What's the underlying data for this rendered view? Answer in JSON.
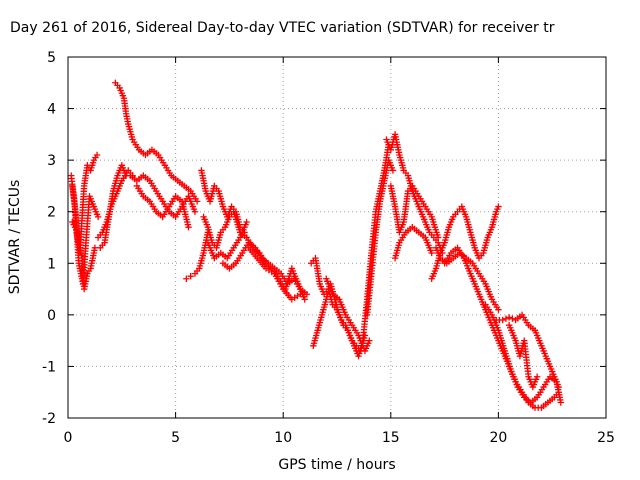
{
  "chart_data": {
    "type": "scatter",
    "title": "Day 261 of 2016, Sidereal Day-to-day VTEC variation (SDTVAR) for receiver tr",
    "xlabel": "GPS time / hours",
    "ylabel": "SDTVAR / TECUs",
    "xlim": [
      0,
      25
    ],
    "ylim": [
      -2,
      5
    ],
    "xticks": [
      "0",
      "5",
      "10",
      "15",
      "20",
      "25"
    ],
    "yticks": [
      "-2",
      "-1",
      "0",
      "1",
      "2",
      "3",
      "4",
      "5"
    ],
    "grid": true,
    "marker": "plus",
    "color": "#ff0000",
    "series": [
      {
        "x": [
          0.15,
          0.3,
          0.4,
          0.55,
          0.75,
          0.9,
          1.05,
          1.2,
          1.35
        ],
        "y": [
          2.7,
          2.2,
          1.6,
          1.2,
          2.5,
          2.9,
          2.8,
          3.0,
          3.1
        ]
      },
      {
        "x": [
          0.2,
          0.35,
          0.5,
          0.7,
          0.85,
          1.0,
          1.2,
          1.4
        ],
        "y": [
          2.5,
          2.0,
          1.0,
          0.6,
          1.5,
          2.3,
          2.1,
          1.9
        ]
      },
      {
        "x": [
          0.2,
          0.45,
          0.65,
          0.75,
          0.9,
          1.05,
          1.25
        ],
        "y": [
          1.8,
          1.6,
          1.1,
          0.5,
          0.8,
          0.9,
          1.3
        ]
      },
      {
        "x": [
          1.4,
          1.6,
          1.8,
          2.0,
          2.2,
          2.5,
          2.8,
          3.0
        ],
        "y": [
          1.5,
          1.6,
          1.8,
          2.1,
          2.3,
          2.6,
          2.8,
          2.7
        ]
      },
      {
        "x": [
          1.5,
          1.7,
          1.9,
          2.1,
          2.3,
          2.5,
          2.7
        ],
        "y": [
          1.3,
          1.4,
          1.9,
          2.4,
          2.7,
          2.9,
          2.7
        ]
      },
      {
        "x": [
          2.2,
          2.4,
          2.6,
          2.7,
          2.8,
          3.0,
          3.3,
          3.6,
          3.9,
          4.2,
          4.5,
          4.8,
          5.1,
          5.4,
          5.7,
          6.0
        ],
        "y": [
          4.5,
          4.4,
          4.2,
          3.9,
          3.7,
          3.4,
          3.2,
          3.1,
          3.2,
          3.1,
          2.9,
          2.7,
          2.6,
          2.5,
          2.4,
          2.2
        ]
      },
      {
        "x": [
          2.9,
          3.2,
          3.5,
          3.8,
          4.1,
          4.4,
          4.7,
          5.0,
          5.3,
          5.6,
          5.9
        ],
        "y": [
          2.7,
          2.6,
          2.7,
          2.6,
          2.4,
          2.2,
          2.0,
          1.9,
          2.1,
          2.3,
          2.0
        ]
      },
      {
        "x": [
          3.2,
          3.5,
          3.8,
          4.1,
          4.4,
          4.7,
          5.0,
          5.3,
          5.6
        ],
        "y": [
          2.5,
          2.3,
          2.2,
          2.0,
          1.9,
          2.1,
          2.3,
          2.2,
          1.7
        ]
      },
      {
        "x": [
          5.5,
          5.7,
          5.9,
          6.1,
          6.3,
          6.5
        ],
        "y": [
          0.7,
          0.75,
          0.8,
          0.9,
          1.2,
          1.6
        ]
      },
      {
        "x": [
          6.2,
          6.4,
          6.6,
          6.8,
          7.0,
          7.2,
          7.4,
          7.6,
          7.8,
          8.0,
          8.2
        ],
        "y": [
          2.8,
          2.4,
          2.2,
          2.5,
          2.4,
          2.1,
          1.9,
          2.1,
          2.0,
          1.7,
          1.6
        ]
      },
      {
        "x": [
          6.3,
          6.5,
          6.7,
          6.9,
          7.1,
          7.3,
          7.5,
          7.7,
          8.0
        ],
        "y": [
          1.9,
          1.7,
          1.4,
          1.3,
          1.6,
          1.7,
          1.9,
          2.0,
          1.6
        ]
      },
      {
        "x": [
          6.5,
          6.8,
          7.1,
          7.4,
          7.7,
          8.0,
          8.3
        ],
        "y": [
          1.4,
          1.1,
          1.2,
          1.1,
          1.3,
          1.5,
          1.8
        ]
      },
      {
        "x": [
          7.2,
          7.5,
          7.8,
          8.1,
          8.4,
          8.7,
          9.0,
          9.3,
          9.6,
          9.9,
          10.2,
          10.5,
          10.8,
          11.1
        ],
        "y": [
          1.0,
          0.9,
          1.0,
          1.2,
          1.4,
          1.3,
          1.1,
          1.0,
          0.9,
          0.8,
          0.6,
          0.7,
          0.5,
          0.4
        ]
      },
      {
        "x": [
          8.0,
          8.3,
          8.6,
          8.9,
          9.2,
          9.5,
          9.8,
          10.1,
          10.4,
          10.7,
          11.0
        ],
        "y": [
          1.6,
          1.5,
          1.3,
          1.2,
          1.0,
          0.9,
          0.7,
          0.5,
          0.9,
          0.6,
          0.3
        ]
      },
      {
        "x": [
          8.4,
          8.8,
          9.2,
          9.6,
          10.0,
          10.4,
          10.8
        ],
        "y": [
          1.3,
          1.1,
          0.9,
          0.8,
          0.5,
          0.3,
          0.4
        ]
      },
      {
        "x": [
          11.3,
          11.5,
          11.7,
          11.9,
          12.1,
          12.3,
          12.5,
          12.7,
          12.9,
          13.1,
          13.3,
          13.5,
          13.7,
          13.9,
          14.1,
          14.3,
          14.5,
          14.7,
          14.9
        ],
        "y": [
          1.0,
          1.1,
          0.6,
          0.4,
          0.5,
          0.2,
          0.1,
          -0.1,
          -0.2,
          -0.4,
          -0.6,
          -0.8,
          -0.5,
          0.3,
          1.2,
          2.0,
          2.4,
          2.8,
          3.3
        ]
      },
      {
        "x": [
          11.4,
          11.6,
          11.8,
          12.0,
          12.2,
          12.4,
          12.6,
          12.8,
          13.0,
          13.2,
          13.4,
          13.6,
          13.8
        ],
        "y": [
          -0.6,
          -0.3,
          0.0,
          0.3,
          0.6,
          0.3,
          0.0,
          -0.2,
          -0.3,
          -0.5,
          -0.6,
          -0.7,
          -0.4
        ]
      },
      {
        "x": [
          12.0,
          12.3,
          12.6,
          12.9,
          13.2,
          13.5,
          13.8,
          14.0
        ],
        "y": [
          0.7,
          0.4,
          0.3,
          0.0,
          -0.2,
          -0.4,
          -0.7,
          -0.5
        ]
      },
      {
        "x": [
          13.9,
          14.1,
          14.3,
          14.5,
          14.7,
          14.9,
          15.1
        ],
        "y": [
          0.0,
          0.8,
          1.6,
          2.2,
          2.6,
          3.0,
          2.8
        ]
      },
      {
        "x": [
          14.8,
          15.0,
          15.2,
          15.4,
          15.6,
          15.8,
          16.0,
          16.2,
          16.4,
          16.6,
          16.8,
          17.0,
          17.2,
          17.4
        ],
        "y": [
          3.4,
          3.2,
          3.5,
          3.1,
          2.8,
          2.7,
          2.4,
          2.2,
          2.0,
          1.8,
          1.6,
          1.5,
          1.4,
          1.2
        ]
      },
      {
        "x": [
          15.0,
          15.2,
          15.4,
          15.6,
          15.8,
          16.0,
          16.3,
          16.6,
          16.9,
          17.2
        ],
        "y": [
          2.5,
          2.1,
          1.6,
          1.8,
          2.4,
          2.5,
          2.3,
          2.1,
          1.9,
          1.5
        ]
      },
      {
        "x": [
          15.2,
          15.4,
          15.7,
          16.0,
          16.3,
          16.6,
          16.9
        ],
        "y": [
          1.1,
          1.4,
          1.6,
          1.7,
          1.6,
          1.5,
          1.2
        ]
      },
      {
        "x": [
          16.9,
          17.1,
          17.3,
          17.5,
          17.7,
          17.9,
          18.1,
          18.3,
          18.5,
          18.7,
          18.9,
          19.1,
          19.3,
          19.5,
          19.7,
          19.9,
          20.0
        ],
        "y": [
          0.7,
          0.9,
          1.2,
          1.4,
          1.7,
          1.9,
          2.0,
          2.1,
          1.9,
          1.6,
          1.3,
          1.1,
          1.2,
          1.5,
          1.7,
          2.0,
          2.1
        ]
      },
      {
        "x": [
          17.1,
          17.3,
          17.6,
          17.9,
          18.2,
          18.5,
          18.8,
          19.1,
          19.4,
          19.7,
          20.0
        ],
        "y": [
          1.3,
          1.1,
          1.0,
          1.1,
          1.2,
          1.1,
          1.0,
          0.8,
          0.6,
          0.3,
          0.1
        ]
      },
      {
        "x": [
          17.5,
          17.8,
          18.1,
          18.4,
          18.7,
          19.0,
          19.3,
          19.6,
          19.9,
          20.2,
          20.5,
          20.8,
          21.1,
          21.4,
          21.7,
          22.0,
          22.3,
          22.6,
          22.8
        ],
        "y": [
          1.0,
          1.2,
          1.3,
          1.1,
          0.8,
          0.5,
          0.2,
          -0.1,
          -0.4,
          -0.7,
          -1.0,
          -1.3,
          -1.5,
          -1.7,
          -1.8,
          -1.8,
          -1.7,
          -1.6,
          -1.5
        ]
      },
      {
        "x": [
          19.4,
          19.7,
          20.0,
          20.3,
          20.6,
          20.9,
          21.2,
          21.5,
          21.8,
          22.1,
          22.4,
          22.7,
          22.9
        ],
        "y": [
          0.2,
          0.0,
          -0.3,
          -0.7,
          -1.1,
          -1.4,
          -1.6,
          -1.7,
          -1.6,
          -1.4,
          -1.2,
          -1.3,
          -1.7
        ]
      },
      {
        "x": [
          19.9,
          20.2,
          20.5,
          20.8,
          21.1,
          21.4,
          21.7,
          22.0,
          22.3,
          22.6,
          22.8
        ],
        "y": [
          -0.1,
          -0.1,
          -0.05,
          -0.1,
          0.0,
          -0.2,
          -0.3,
          -0.6,
          -0.9,
          -1.2,
          -1.4
        ]
      },
      {
        "x": [
          20.5,
          20.8,
          21.0,
          21.2,
          21.4,
          21.6,
          21.8
        ],
        "y": [
          -0.2,
          -0.5,
          -0.8,
          -0.5,
          -1.2,
          -1.4,
          -1.2
        ]
      }
    ]
  }
}
